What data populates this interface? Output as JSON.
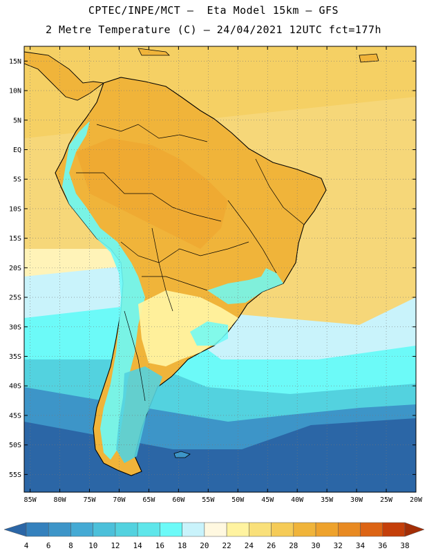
{
  "header": {
    "line1": "CPTEC/INPE/MCT –  Eta Model 15km – GFS",
    "line2": "2 Metre Temperature (C) – 24/04/2021 12UTC fct=177h"
  },
  "map": {
    "lat_labels": [
      "15N",
      "10N",
      "5N",
      "EQ",
      "5S",
      "10S",
      "15S",
      "20S",
      "25S",
      "30S",
      "35S",
      "40S",
      "45S",
      "50S",
      "55S"
    ],
    "lon_labels": [
      "85W",
      "80W",
      "75W",
      "70W",
      "65W",
      "60W",
      "55W",
      "50W",
      "45W",
      "40W",
      "35W",
      "30W",
      "25W",
      "20W"
    ],
    "lat_range": [
      17.5,
      -58
    ],
    "lon_range": [
      -86,
      -20
    ],
    "grid": "dotted"
  },
  "colorbar": {
    "labels": [
      "4",
      "6",
      "8",
      "10",
      "12",
      "14",
      "16",
      "18",
      "20",
      "22",
      "24",
      "26",
      "28",
      "30",
      "32",
      "34",
      "36",
      "38"
    ],
    "colors": [
      "#2b66a6",
      "#3481bd",
      "#3d95c8",
      "#45aad4",
      "#4cc0da",
      "#53d2df",
      "#5fe6ea",
      "#6cfaf8",
      "#c9f3fb",
      "#fff8e0",
      "#fff3a0",
      "#f9e07a",
      "#f5cb57",
      "#f0b43a",
      "#eea22c",
      "#e88a22",
      "#dc6414",
      "#c43f0a",
      "#a32e06"
    ]
  }
}
